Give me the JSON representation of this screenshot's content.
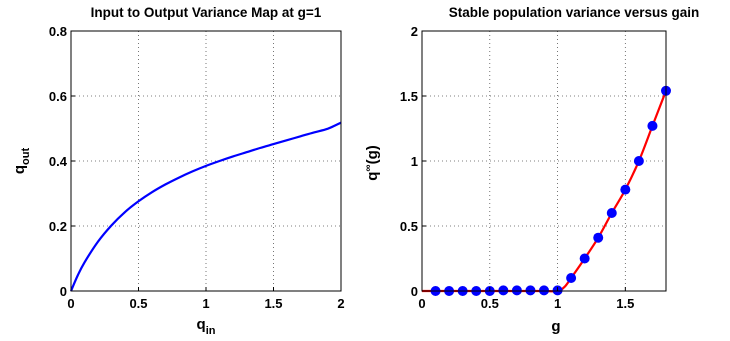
{
  "chart_data": [
    {
      "type": "line",
      "title": "Input to Output Variance Map at g=1",
      "xlabel": "q",
      "xlabel_sub": "in",
      "ylabel": "q",
      "ylabel_sub": "out",
      "xlim": [
        0,
        2
      ],
      "ylim": [
        0,
        0.8
      ],
      "xticks": [
        "0",
        "0.5",
        "1",
        "1.5",
        "2"
      ],
      "yticks": [
        "0",
        "0.2",
        "0.4",
        "0.6",
        "0.8"
      ],
      "grid": true,
      "series": [
        {
          "color": "#0000ff",
          "x": [
            0,
            0.05,
            0.1,
            0.2,
            0.3,
            0.4,
            0.5,
            0.6,
            0.7,
            0.8,
            0.9,
            1.0,
            1.1,
            1.2,
            1.3,
            1.4,
            1.5,
            1.6,
            1.7,
            1.8,
            1.9,
            2.0
          ],
          "y": [
            0,
            0.048,
            0.088,
            0.152,
            0.202,
            0.243,
            0.276,
            0.304,
            0.328,
            0.349,
            0.368,
            0.385,
            0.4,
            0.414,
            0.427,
            0.44,
            0.452,
            0.464,
            0.476,
            0.488,
            0.499,
            0.518
          ]
        }
      ]
    },
    {
      "type": "line",
      "title": "Stable population variance versus gain",
      "xlabel": "g",
      "ylabel": "q",
      "ylabel_sup": "∞",
      "ylabel_rest": "(g)",
      "xlim": [
        0,
        1.8
      ],
      "ylim": [
        0,
        2
      ],
      "xticks": [
        "0",
        "0.5",
        "1",
        "1.5"
      ],
      "yticks": [
        "0",
        "0.5",
        "1",
        "1.5",
        "2"
      ],
      "grid": true,
      "series": [
        {
          "style": "line",
          "color": "#ff0000",
          "x": [
            0,
            0.1,
            0.2,
            0.3,
            0.4,
            0.5,
            0.6,
            0.7,
            0.8,
            0.9,
            1.0,
            1.05,
            1.1,
            1.2,
            1.3,
            1.4,
            1.5,
            1.6,
            1.7,
            1.8
          ],
          "y": [
            0,
            0,
            0,
            0,
            0,
            0,
            0,
            0,
            0,
            0,
            0,
            0.03,
            0.1,
            0.25,
            0.41,
            0.6,
            0.78,
            1.0,
            1.27,
            1.54
          ]
        },
        {
          "style": "markers",
          "color": "#0000ff",
          "x": [
            0.1,
            0.2,
            0.3,
            0.4,
            0.5,
            0.6,
            0.7,
            0.8,
            0.9,
            1.0,
            1.1,
            1.2,
            1.3,
            1.4,
            1.5,
            1.6,
            1.7,
            1.8
          ],
          "y": [
            0,
            0,
            0,
            0,
            0,
            0.005,
            0.005,
            0.005,
            0.005,
            0.005,
            0.1,
            0.25,
            0.41,
            0.6,
            0.78,
            1.0,
            1.27,
            1.54
          ]
        }
      ]
    }
  ]
}
